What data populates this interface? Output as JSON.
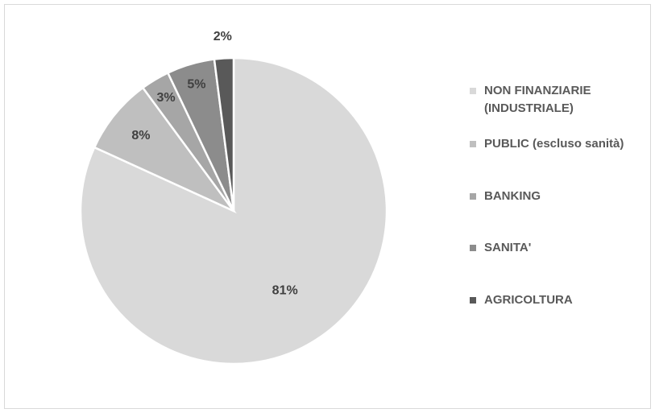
{
  "chart_data": {
    "type": "pie",
    "title": "",
    "categories": [
      "NON FINANZIARIE (INDUSTRIALE)",
      "PUBLIC (escluso sanità)",
      "BANKING",
      "SANITA'",
      "AGRICOLTURA"
    ],
    "values": [
      81,
      8,
      3,
      5,
      2
    ],
    "value_labels": [
      "81%",
      "8%",
      "3%",
      "5%",
      "2%"
    ],
    "colors": [
      "#d9d9d9",
      "#bfbfbf",
      "#a6a6a6",
      "#8c8c8c",
      "#595959"
    ],
    "legend_position": "right"
  },
  "legend": {
    "items": [
      {
        "label_line1": "NON FINANZIARIE",
        "label_line2": "(INDUSTRIALE)"
      },
      {
        "label_line1": "PUBLIC (escluso sanità)"
      },
      {
        "label_line1": "BANKING"
      },
      {
        "label_line1": "SANITA'"
      },
      {
        "label_line1": "AGRICOLTURA"
      }
    ]
  }
}
